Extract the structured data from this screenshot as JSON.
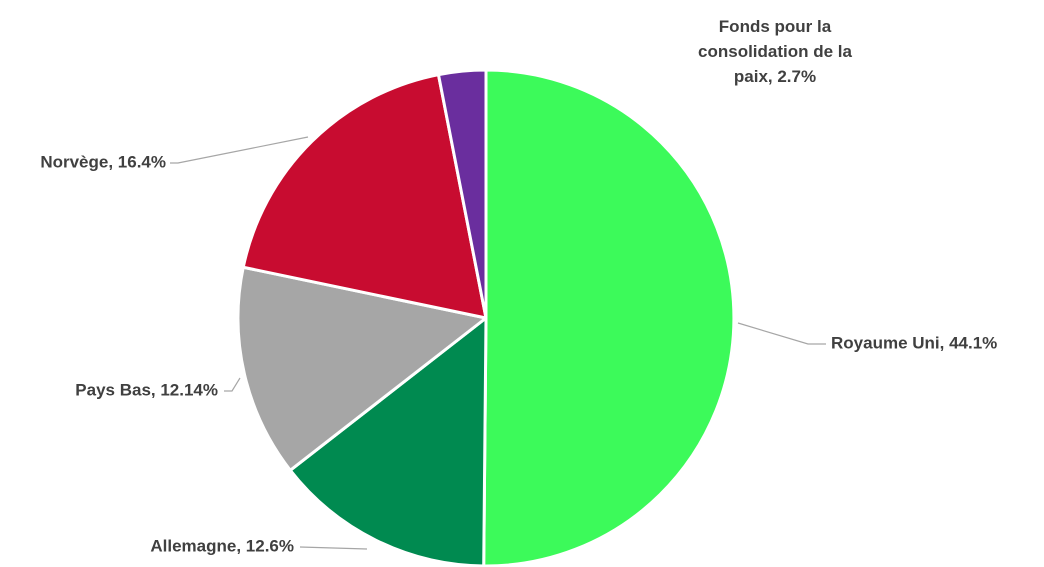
{
  "chart_data": {
    "type": "pie",
    "start_angle_deg": 0,
    "direction": "clockwise",
    "slices": [
      {
        "label": "Royaume Uni, 44.1%",
        "value": 44.1,
        "color": "#3cfa5a"
      },
      {
        "label": "Allemagne, 12.6%",
        "value": 12.6,
        "color": "#008a50"
      },
      {
        "label": "Pays Bas, 12.14%",
        "value": 12.14,
        "color": "#a6a6a6"
      },
      {
        "label": "Norvège, 16.4%",
        "value": 16.4,
        "color": "#c80c30"
      },
      {
        "label": "Fonds pour la consolidation de la paix, 2.7%",
        "value": 2.7,
        "color": "#6a2e9e",
        "label_lines": [
          "Fonds pour la",
          "consolidation de la",
          "paix, 2.7%"
        ]
      }
    ],
    "legend": "none"
  }
}
